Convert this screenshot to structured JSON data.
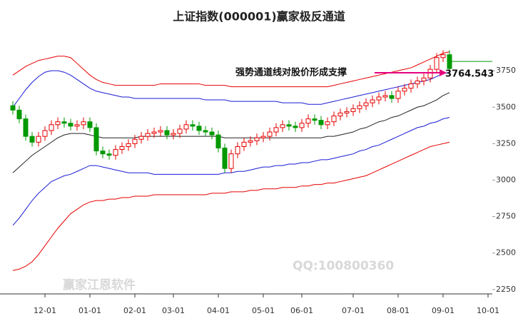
{
  "chart_data": {
    "type": "candlestick",
    "title": "上证指数(000001)赢家极反通道",
    "categories": [
      null,
      null,
      null,
      null,
      null,
      "12-01",
      null,
      null,
      null,
      null,
      null,
      null,
      "01-01",
      null,
      null,
      null,
      null,
      null,
      null,
      "02-01",
      null,
      null,
      null,
      null,
      null,
      "03-01",
      null,
      null,
      null,
      null,
      null,
      null,
      "04-01",
      null,
      null,
      null,
      null,
      null,
      null,
      "05-01",
      null,
      null,
      null,
      null,
      null,
      "06-01",
      null,
      null,
      null,
      null,
      null,
      null,
      null,
      "07-01",
      null,
      null,
      null,
      null,
      null,
      null,
      "08-01",
      null,
      null,
      null,
      null,
      null,
      null,
      "09-01",
      null,
      null,
      null,
      null,
      null,
      null,
      "10-01"
    ],
    "open": [
      3510,
      3480,
      3420,
      3300,
      3260,
      3300,
      3340,
      3380,
      3400,
      3390,
      3370,
      3380,
      3400,
      3360,
      3200,
      3180,
      3170,
      3210,
      3230,
      3250,
      3280,
      3300,
      3320,
      3330,
      3340,
      3310,
      3320,
      3350,
      3380,
      3370,
      3340,
      3330,
      3310,
      3220,
      3080,
      3180,
      3230,
      3260,
      3270,
      3290,
      3300,
      3330,
      3360,
      3380,
      3370,
      3360,
      3390,
      3420,
      3410,
      3380,
      3400,
      3440,
      3460,
      3470,
      3490,
      3510,
      3530,
      3550,
      3570,
      3580,
      3560,
      3610,
      3630,
      3660,
      3680,
      3700,
      3760,
      3840,
      3860,
      null,
      null,
      null,
      null,
      null,
      null
    ],
    "high": [
      3540,
      3510,
      3450,
      3330,
      3330,
      3370,
      3410,
      3430,
      3430,
      3420,
      3410,
      3430,
      3430,
      3390,
      3230,
      3210,
      3240,
      3260,
      3280,
      3310,
      3330,
      3350,
      3360,
      3370,
      3370,
      3350,
      3380,
      3410,
      3410,
      3400,
      3370,
      3360,
      3340,
      3250,
      3210,
      3260,
      3290,
      3300,
      3320,
      3330,
      3360,
      3390,
      3410,
      3410,
      3400,
      3420,
      3450,
      3450,
      3440,
      3430,
      3470,
      3490,
      3500,
      3520,
      3540,
      3560,
      3580,
      3600,
      3610,
      3610,
      3640,
      3660,
      3690,
      3710,
      3730,
      3790,
      3870,
      3890,
      3890,
      null,
      null,
      null,
      null,
      null,
      null
    ],
    "low": [
      3450,
      3390,
      3270,
      3230,
      3230,
      3270,
      3310,
      3350,
      3360,
      3340,
      3340,
      3350,
      3330,
      3170,
      3150,
      3140,
      3140,
      3180,
      3200,
      3220,
      3250,
      3270,
      3290,
      3300,
      3280,
      3280,
      3290,
      3320,
      3340,
      3310,
      3300,
      3280,
      3190,
      3050,
      3050,
      3150,
      3200,
      3230,
      3240,
      3260,
      3270,
      3300,
      3330,
      3340,
      3330,
      3330,
      3360,
      3380,
      3350,
      3350,
      3370,
      3410,
      3430,
      3440,
      3460,
      3480,
      3500,
      3520,
      3540,
      3530,
      3530,
      3580,
      3600,
      3630,
      3650,
      3670,
      3730,
      3810,
      3735,
      null,
      null,
      null,
      null,
      null,
      null
    ],
    "close": [
      3480,
      3420,
      3300,
      3260,
      3300,
      3340,
      3380,
      3400,
      3390,
      3370,
      3380,
      3400,
      3360,
      3200,
      3180,
      3170,
      3210,
      3230,
      3250,
      3280,
      3300,
      3320,
      3330,
      3340,
      3310,
      3320,
      3350,
      3380,
      3370,
      3340,
      3330,
      3310,
      3220,
      3080,
      3180,
      3230,
      3260,
      3270,
      3290,
      3300,
      3330,
      3360,
      3380,
      3370,
      3360,
      3390,
      3420,
      3410,
      3380,
      3400,
      3440,
      3460,
      3470,
      3490,
      3510,
      3530,
      3550,
      3570,
      3580,
      3560,
      3610,
      3630,
      3660,
      3680,
      3700,
      3760,
      3840,
      3860,
      3765,
      null,
      null,
      null,
      null,
      null,
      null
    ],
    "up_color": "#e60000",
    "down_color": "#009900",
    "lines": [
      {
        "color": "#e60000",
        "values": [
          3720,
          3750,
          3780,
          3800,
          3820,
          3830,
          3840,
          3850,
          3850,
          3840,
          3800,
          3760,
          3720,
          3690,
          3670,
          3660,
          3650,
          3650,
          3650,
          3650,
          3650,
          3650,
          3650,
          3660,
          3660,
          3660,
          3660,
          3660,
          3660,
          3660,
          3650,
          3650,
          3650,
          3650,
          3640,
          3640,
          3640,
          3640,
          3640,
          3640,
          3640,
          3640,
          3640,
          3640,
          3640,
          3640,
          3640,
          3640,
          3640,
          3640,
          3650,
          3660,
          3670,
          3680,
          3690,
          3700,
          3710,
          3720,
          3730,
          3740,
          3750,
          3760,
          3770,
          3790,
          3810,
          3830,
          3850,
          3870,
          3880,
          null,
          null,
          null,
          null,
          null,
          null
        ]
      },
      {
        "color": "#1a1ad6",
        "values": [
          3500,
          3560,
          3620,
          3670,
          3710,
          3740,
          3750,
          3750,
          3740,
          3720,
          3690,
          3660,
          3630,
          3610,
          3600,
          3590,
          3580,
          3570,
          3570,
          3560,
          3560,
          3560,
          3560,
          3560,
          3560,
          3560,
          3560,
          3560,
          3560,
          3560,
          3550,
          3550,
          3550,
          3550,
          3540,
          3540,
          3540,
          3540,
          3540,
          3540,
          3540,
          3540,
          3530,
          3530,
          3530,
          3530,
          3520,
          3520,
          3520,
          3530,
          3540,
          3550,
          3560,
          3570,
          3580,
          3590,
          3600,
          3610,
          3620,
          3630,
          3640,
          3650,
          3660,
          3670,
          3680,
          3690,
          3710,
          3730,
          3740,
          null,
          null,
          null,
          null,
          null,
          null
        ]
      },
      {
        "color": "#222222",
        "values": [
          3050,
          3090,
          3130,
          3170,
          3200,
          3230,
          3260,
          3290,
          3310,
          3320,
          3320,
          3320,
          3310,
          3300,
          3290,
          3290,
          3290,
          3290,
          3290,
          3290,
          3300,
          3300,
          3300,
          3300,
          3300,
          3300,
          3300,
          3300,
          3300,
          3300,
          3300,
          3300,
          3300,
          3290,
          3290,
          3290,
          3290,
          3290,
          3290,
          3290,
          3290,
          3290,
          3290,
          3290,
          3290,
          3290,
          3290,
          3290,
          3290,
          3300,
          3300,
          3310,
          3320,
          3330,
          3350,
          3360,
          3380,
          3400,
          3410,
          3430,
          3440,
          3460,
          3480,
          3500,
          3510,
          3530,
          3550,
          3580,
          3600,
          null,
          null,
          null,
          null,
          null,
          null
        ]
      },
      {
        "color": "#1a1ad6",
        "values": [
          2690,
          2740,
          2800,
          2860,
          2910,
          2950,
          2990,
          3010,
          3030,
          3040,
          3060,
          3080,
          3100,
          3100,
          3090,
          3080,
          3070,
          3060,
          3050,
          3050,
          3050,
          3050,
          3040,
          3040,
          3040,
          3040,
          3040,
          3040,
          3040,
          3040,
          3040,
          3040,
          3040,
          3050,
          3050,
          3060,
          3060,
          3070,
          3080,
          3090,
          3090,
          3100,
          3100,
          3110,
          3110,
          3120,
          3120,
          3130,
          3140,
          3140,
          3150,
          3160,
          3170,
          3180,
          3200,
          3210,
          3230,
          3240,
          3260,
          3280,
          3300,
          3320,
          3340,
          3360,
          3370,
          3390,
          3400,
          3420,
          3430,
          null,
          null,
          null,
          null,
          null,
          null
        ]
      },
      {
        "color": "#e60000",
        "values": [
          2380,
          2390,
          2410,
          2440,
          2490,
          2550,
          2610,
          2670,
          2720,
          2770,
          2800,
          2830,
          2850,
          2860,
          2860,
          2870,
          2870,
          2880,
          2880,
          2890,
          2890,
          2890,
          2900,
          2900,
          2900,
          2900,
          2900,
          2900,
          2900,
          2900,
          2900,
          2910,
          2910,
          2910,
          2920,
          2920,
          2920,
          2930,
          2930,
          2940,
          2940,
          2940,
          2950,
          2950,
          2950,
          2960,
          2960,
          2970,
          2970,
          2980,
          2980,
          2990,
          3000,
          3010,
          3020,
          3030,
          3050,
          3070,
          3090,
          3110,
          3130,
          3150,
          3170,
          3190,
          3210,
          3230,
          3240,
          3250,
          3260,
          null,
          null,
          null,
          null,
          null,
          null
        ]
      }
    ],
    "ylim": [
      2220,
      4010
    ],
    "yticks": [
      2250,
      2500,
      2750,
      3000,
      3250,
      3500,
      3750
    ],
    "annotation": {
      "text": "强势通道线对股价形成支撑",
      "value_label": "3764.543",
      "color": "#e6007e"
    },
    "watermarks": [
      "赢家江恩软件",
      "QQ:100800360"
    ]
  }
}
